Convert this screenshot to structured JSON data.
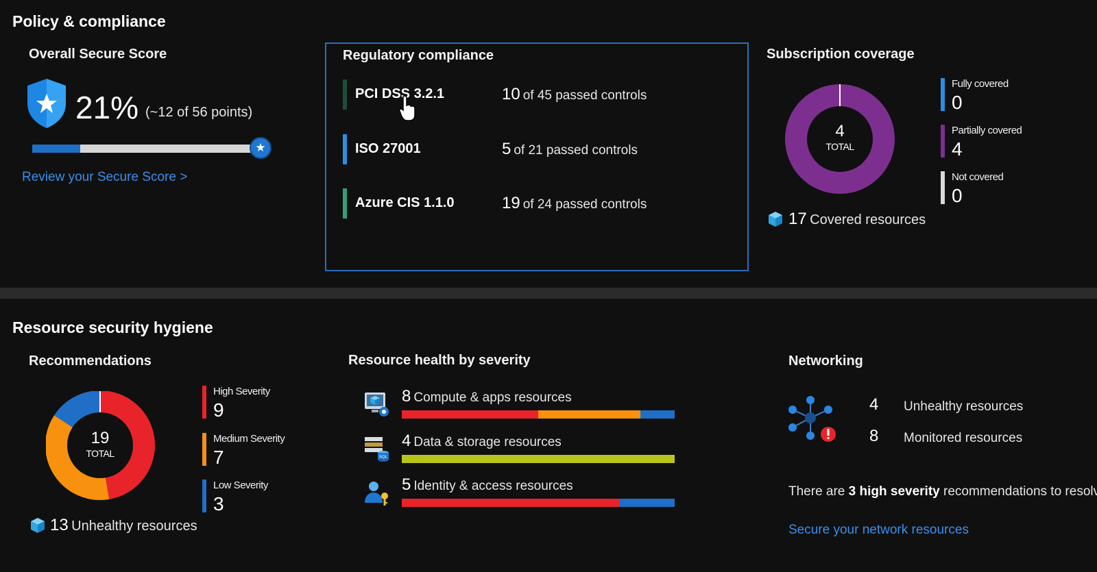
{
  "policy": {
    "title": "Policy & compliance",
    "secure_score": {
      "title": "Overall Secure Score",
      "percent": "21%",
      "points": "(~12 of 56 points)",
      "progress_fraction": 0.21,
      "link": "Review your Secure Score >"
    },
    "regulatory": {
      "title": "Regulatory compliance",
      "items": [
        {
          "name": "PCI DSS 3.2.1",
          "passed": "10",
          "text": "of 45 passed controls",
          "accent": "#1f4d3a"
        },
        {
          "name": "ISO 27001",
          "passed": "5",
          "text": "of 21 passed controls",
          "accent": "#2d8fe3"
        },
        {
          "name": "Azure CIS 1.1.0",
          "passed": "19",
          "text": "of 24 passed controls",
          "accent": "#2fa37a"
        }
      ]
    },
    "subscription": {
      "title": "Subscription coverage",
      "total": "4",
      "total_label": "TOTAL",
      "legend": [
        {
          "label": "Fully covered",
          "value": "0",
          "color": "#2b8de5"
        },
        {
          "label": "Partially covered",
          "value": "4",
          "color": "#7d2f8f"
        },
        {
          "label": "Not covered",
          "value": "0",
          "color": "#d9d9d9"
        }
      ],
      "covered_count": "17",
      "covered_label": "Covered resources"
    }
  },
  "hygiene": {
    "title": "Resource security hygiene",
    "recommendations": {
      "title": "Recommendations",
      "total": "19",
      "total_label": "TOTAL",
      "legend": [
        {
          "label": "High Severity",
          "value": "9",
          "color": "#e8242a"
        },
        {
          "label": "Medium Severity",
          "value": "7",
          "color": "#f7910e"
        },
        {
          "label": "Low Severity",
          "value": "3",
          "color": "#1f6fc7"
        }
      ],
      "unhealthy_count": "13",
      "unhealthy_label": "Unhealthy resources"
    },
    "health": {
      "title": "Resource health by severity",
      "rows": [
        {
          "count": "8",
          "label": "Compute & apps resources",
          "segments": [
            {
              "color": "#e8242a",
              "value": 0.5
            },
            {
              "color": "#f7910e",
              "value": 0.375
            },
            {
              "color": "#1f6fc7",
              "value": 0.125
            }
          ]
        },
        {
          "count": "4",
          "label": "Data & storage resources",
          "segments": [
            {
              "color": "#b8c41c",
              "value": 1
            }
          ]
        },
        {
          "count": "5",
          "label": "Identity & access resources",
          "segments": [
            {
              "color": "#e8242a",
              "value": 0.8
            },
            {
              "color": "#1f6fc7",
              "value": 0.2
            }
          ]
        }
      ]
    },
    "networking": {
      "title": "Networking",
      "unhealthy_count": "4",
      "unhealthy_label": "Unhealthy resources",
      "monitored_count": "8",
      "monitored_label": "Monitored resources",
      "note_prefix": "There are",
      "note_bold": "3 high severity",
      "note_suffix": "recommendations to resolve",
      "link": "Secure your network resources"
    }
  },
  "chart_data": [
    {
      "type": "pie",
      "categories": [
        "Fully covered",
        "Partially covered",
        "Not covered"
      ],
      "values": [
        0,
        4,
        0
      ]
    },
    {
      "type": "pie",
      "categories": [
        "High Severity",
        "Medium Severity",
        "Low Severity"
      ],
      "values": [
        9,
        7,
        3
      ]
    }
  ]
}
